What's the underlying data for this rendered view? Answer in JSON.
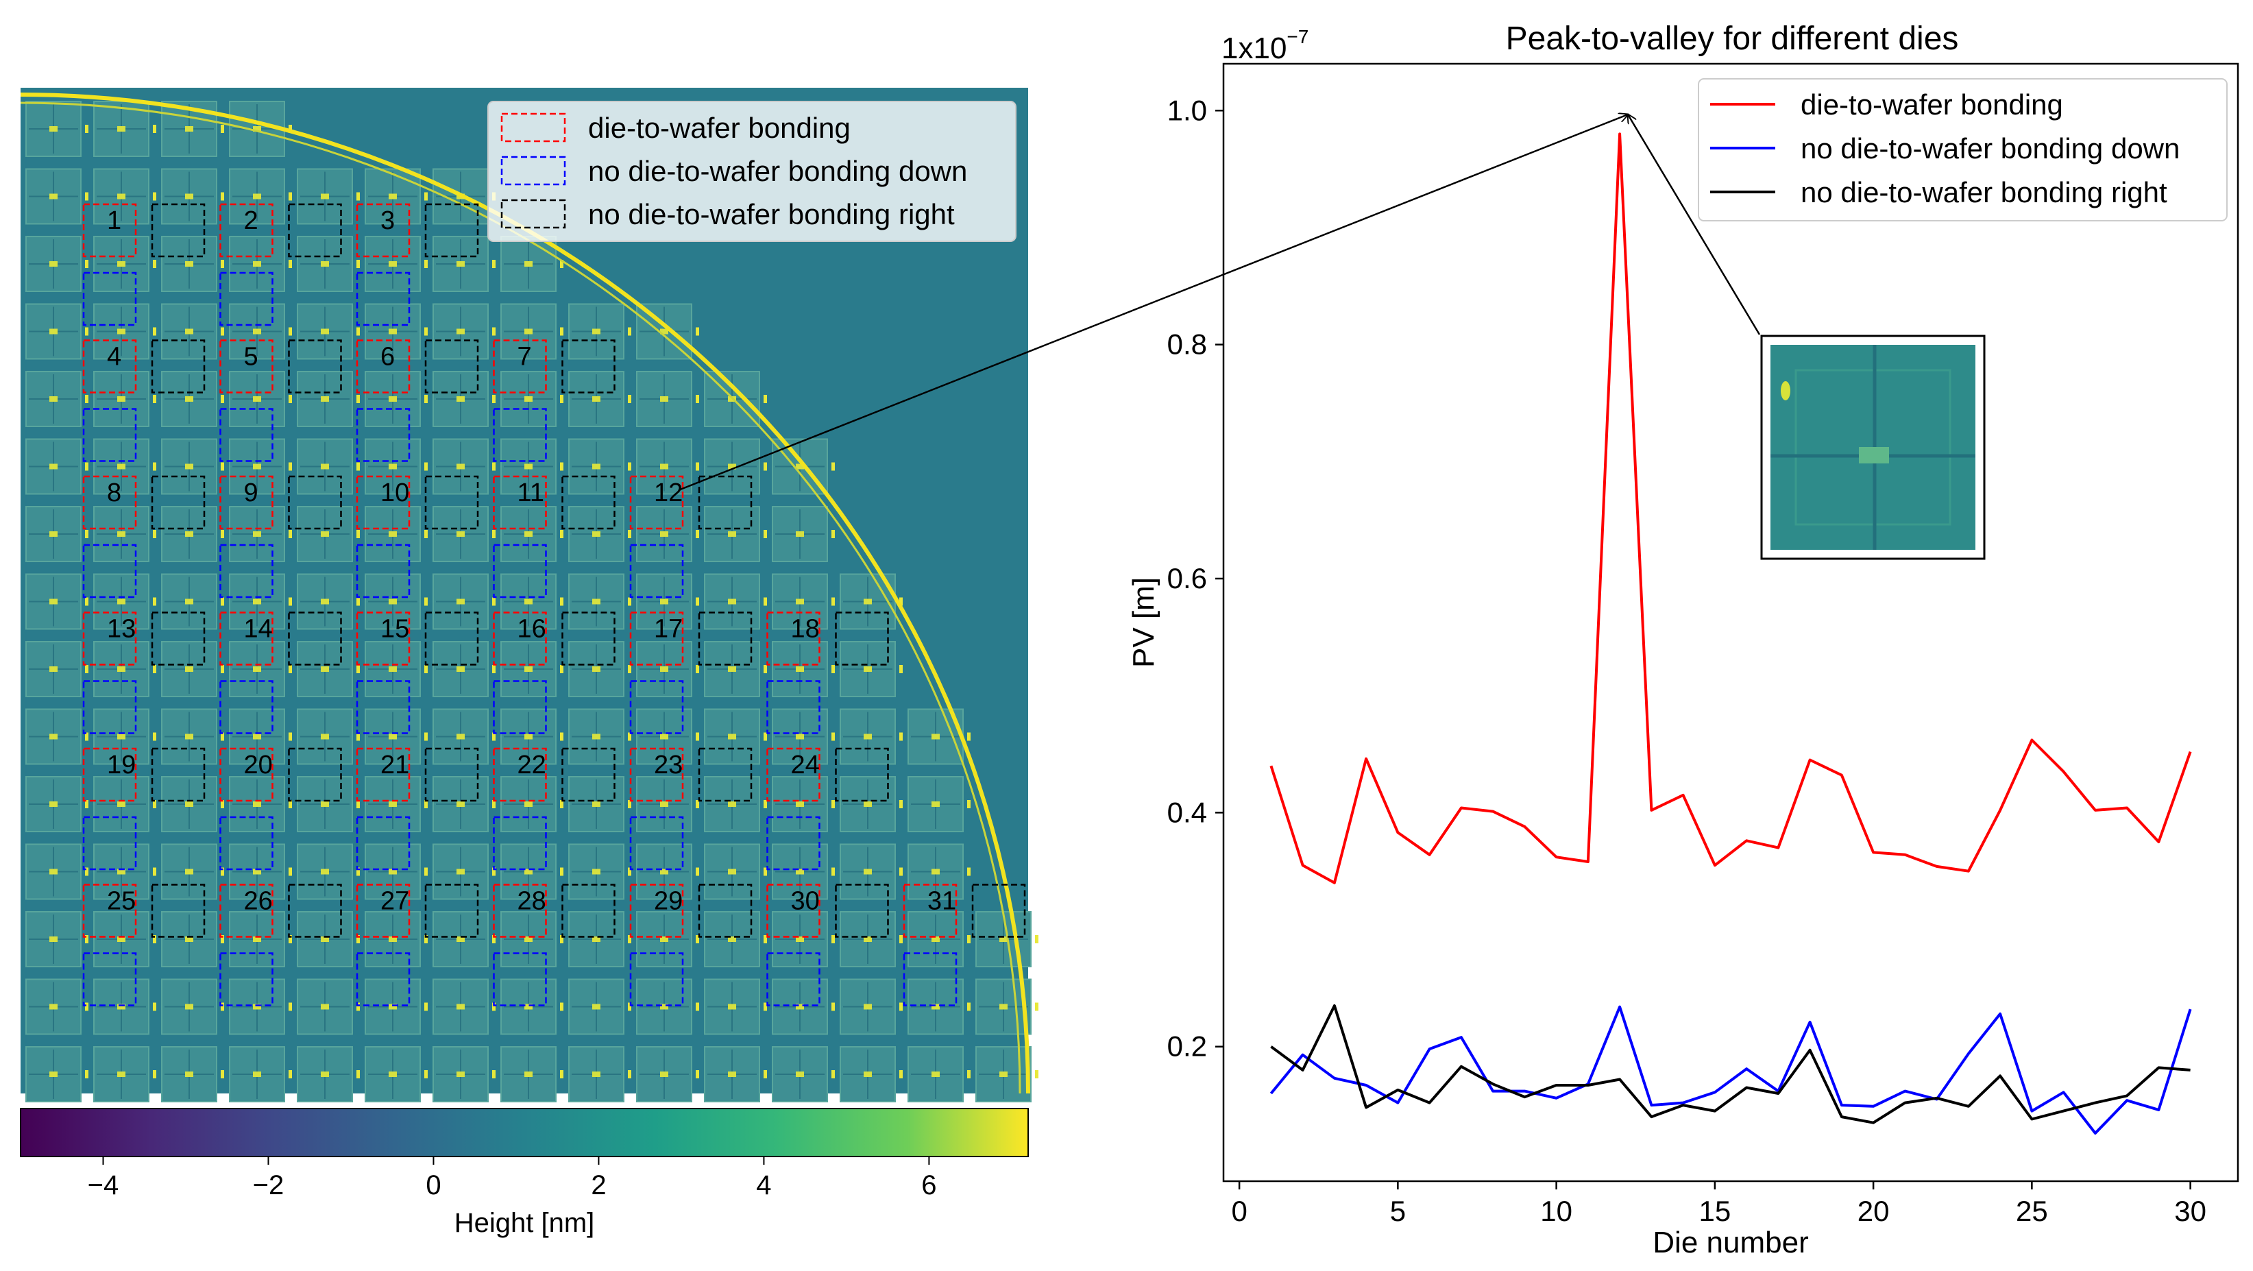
{
  "colors": {
    "wafer_bg": "#2a7b8c",
    "die_fill": "#3f8f93",
    "wafer_edge": "#f2e320",
    "red": "#ff0000",
    "blue": "#0000ff",
    "black": "#000000",
    "inset_fill": "#2e8b8a"
  },
  "left_panel": {
    "legend": [
      {
        "label": "die-to-wafer bonding",
        "color": "#ff0000"
      },
      {
        "label": "no die-to-wafer bonding down",
        "color": "#0000ff"
      },
      {
        "label": "no die-to-wafer bonding right",
        "color": "#000000"
      }
    ],
    "die_rows": [
      [
        "1",
        "2",
        "3"
      ],
      [
        "4",
        "5",
        "6",
        "7"
      ],
      [
        "8",
        "9",
        "10",
        "11",
        "12"
      ],
      [
        "13",
        "14",
        "15",
        "16",
        "17",
        "18"
      ],
      [
        "19",
        "20",
        "21",
        "22",
        "23",
        "24"
      ],
      [
        "25",
        "26",
        "27",
        "28",
        "29",
        "30",
        "31"
      ]
    ],
    "colorbar": {
      "label": "Height [nm]",
      "ticks": [
        "−4",
        "−2",
        "0",
        "2",
        "4",
        "6"
      ],
      "tick_values": [
        -4,
        -2,
        0,
        2,
        4,
        6
      ],
      "range": [
        -5,
        7.2
      ]
    }
  },
  "chart_data": {
    "type": "line",
    "title": "Peak-to-valley for different dies",
    "xlabel": "Die number",
    "ylabel": "PV [m]",
    "offset_label": "1x10",
    "offset_exp": "−7",
    "xlim": [
      -0.5,
      31.5
    ],
    "ylim": [
      0.085,
      1.04
    ],
    "xticks": [
      0,
      5,
      10,
      15,
      20,
      25,
      30
    ],
    "yticks": [
      0.2,
      0.4,
      0.6,
      0.8,
      1.0
    ],
    "ytick_labels": [
      "0.2",
      "0.4",
      "0.6",
      "0.8",
      "1.0"
    ],
    "legend_position": "top-right",
    "x": [
      1,
      2,
      3,
      4,
      5,
      6,
      7,
      8,
      9,
      10,
      11,
      12,
      13,
      14,
      15,
      16,
      17,
      18,
      19,
      20,
      21,
      22,
      23,
      24,
      25,
      26,
      27,
      28,
      29,
      30
    ],
    "series": [
      {
        "name": "die-to-wafer bonding",
        "color": "#ff0000",
        "values": [
          0.44,
          0.355,
          0.34,
          0.446,
          0.383,
          0.364,
          0.404,
          0.401,
          0.388,
          0.362,
          0.358,
          0.98,
          0.402,
          0.415,
          0.355,
          0.376,
          0.37,
          0.445,
          0.432,
          0.366,
          0.364,
          0.354,
          0.35,
          0.402,
          0.462,
          0.435,
          0.402,
          0.404,
          0.375,
          0.452
        ]
      },
      {
        "name": "no die-to-wafer bonding down",
        "color": "#0000ff",
        "values": [
          0.16,
          0.193,
          0.173,
          0.167,
          0.152,
          0.198,
          0.208,
          0.162,
          0.162,
          0.156,
          0.168,
          0.234,
          0.15,
          0.152,
          0.161,
          0.181,
          0.162,
          0.221,
          0.15,
          0.149,
          0.162,
          0.155,
          0.194,
          0.228,
          0.145,
          0.161,
          0.126,
          0.154,
          0.146,
          0.232
        ]
      },
      {
        "name": "no die-to-wafer bonding right",
        "color": "#000000",
        "values": [
          0.2,
          0.18,
          0.235,
          0.148,
          0.163,
          0.152,
          0.183,
          0.168,
          0.157,
          0.167,
          0.167,
          0.172,
          0.14,
          0.15,
          0.145,
          0.165,
          0.16,
          0.197,
          0.14,
          0.135,
          0.152,
          0.156,
          0.149,
          0.175,
          0.138,
          0.145,
          0.152,
          0.158,
          0.182,
          0.18
        ]
      }
    ]
  }
}
